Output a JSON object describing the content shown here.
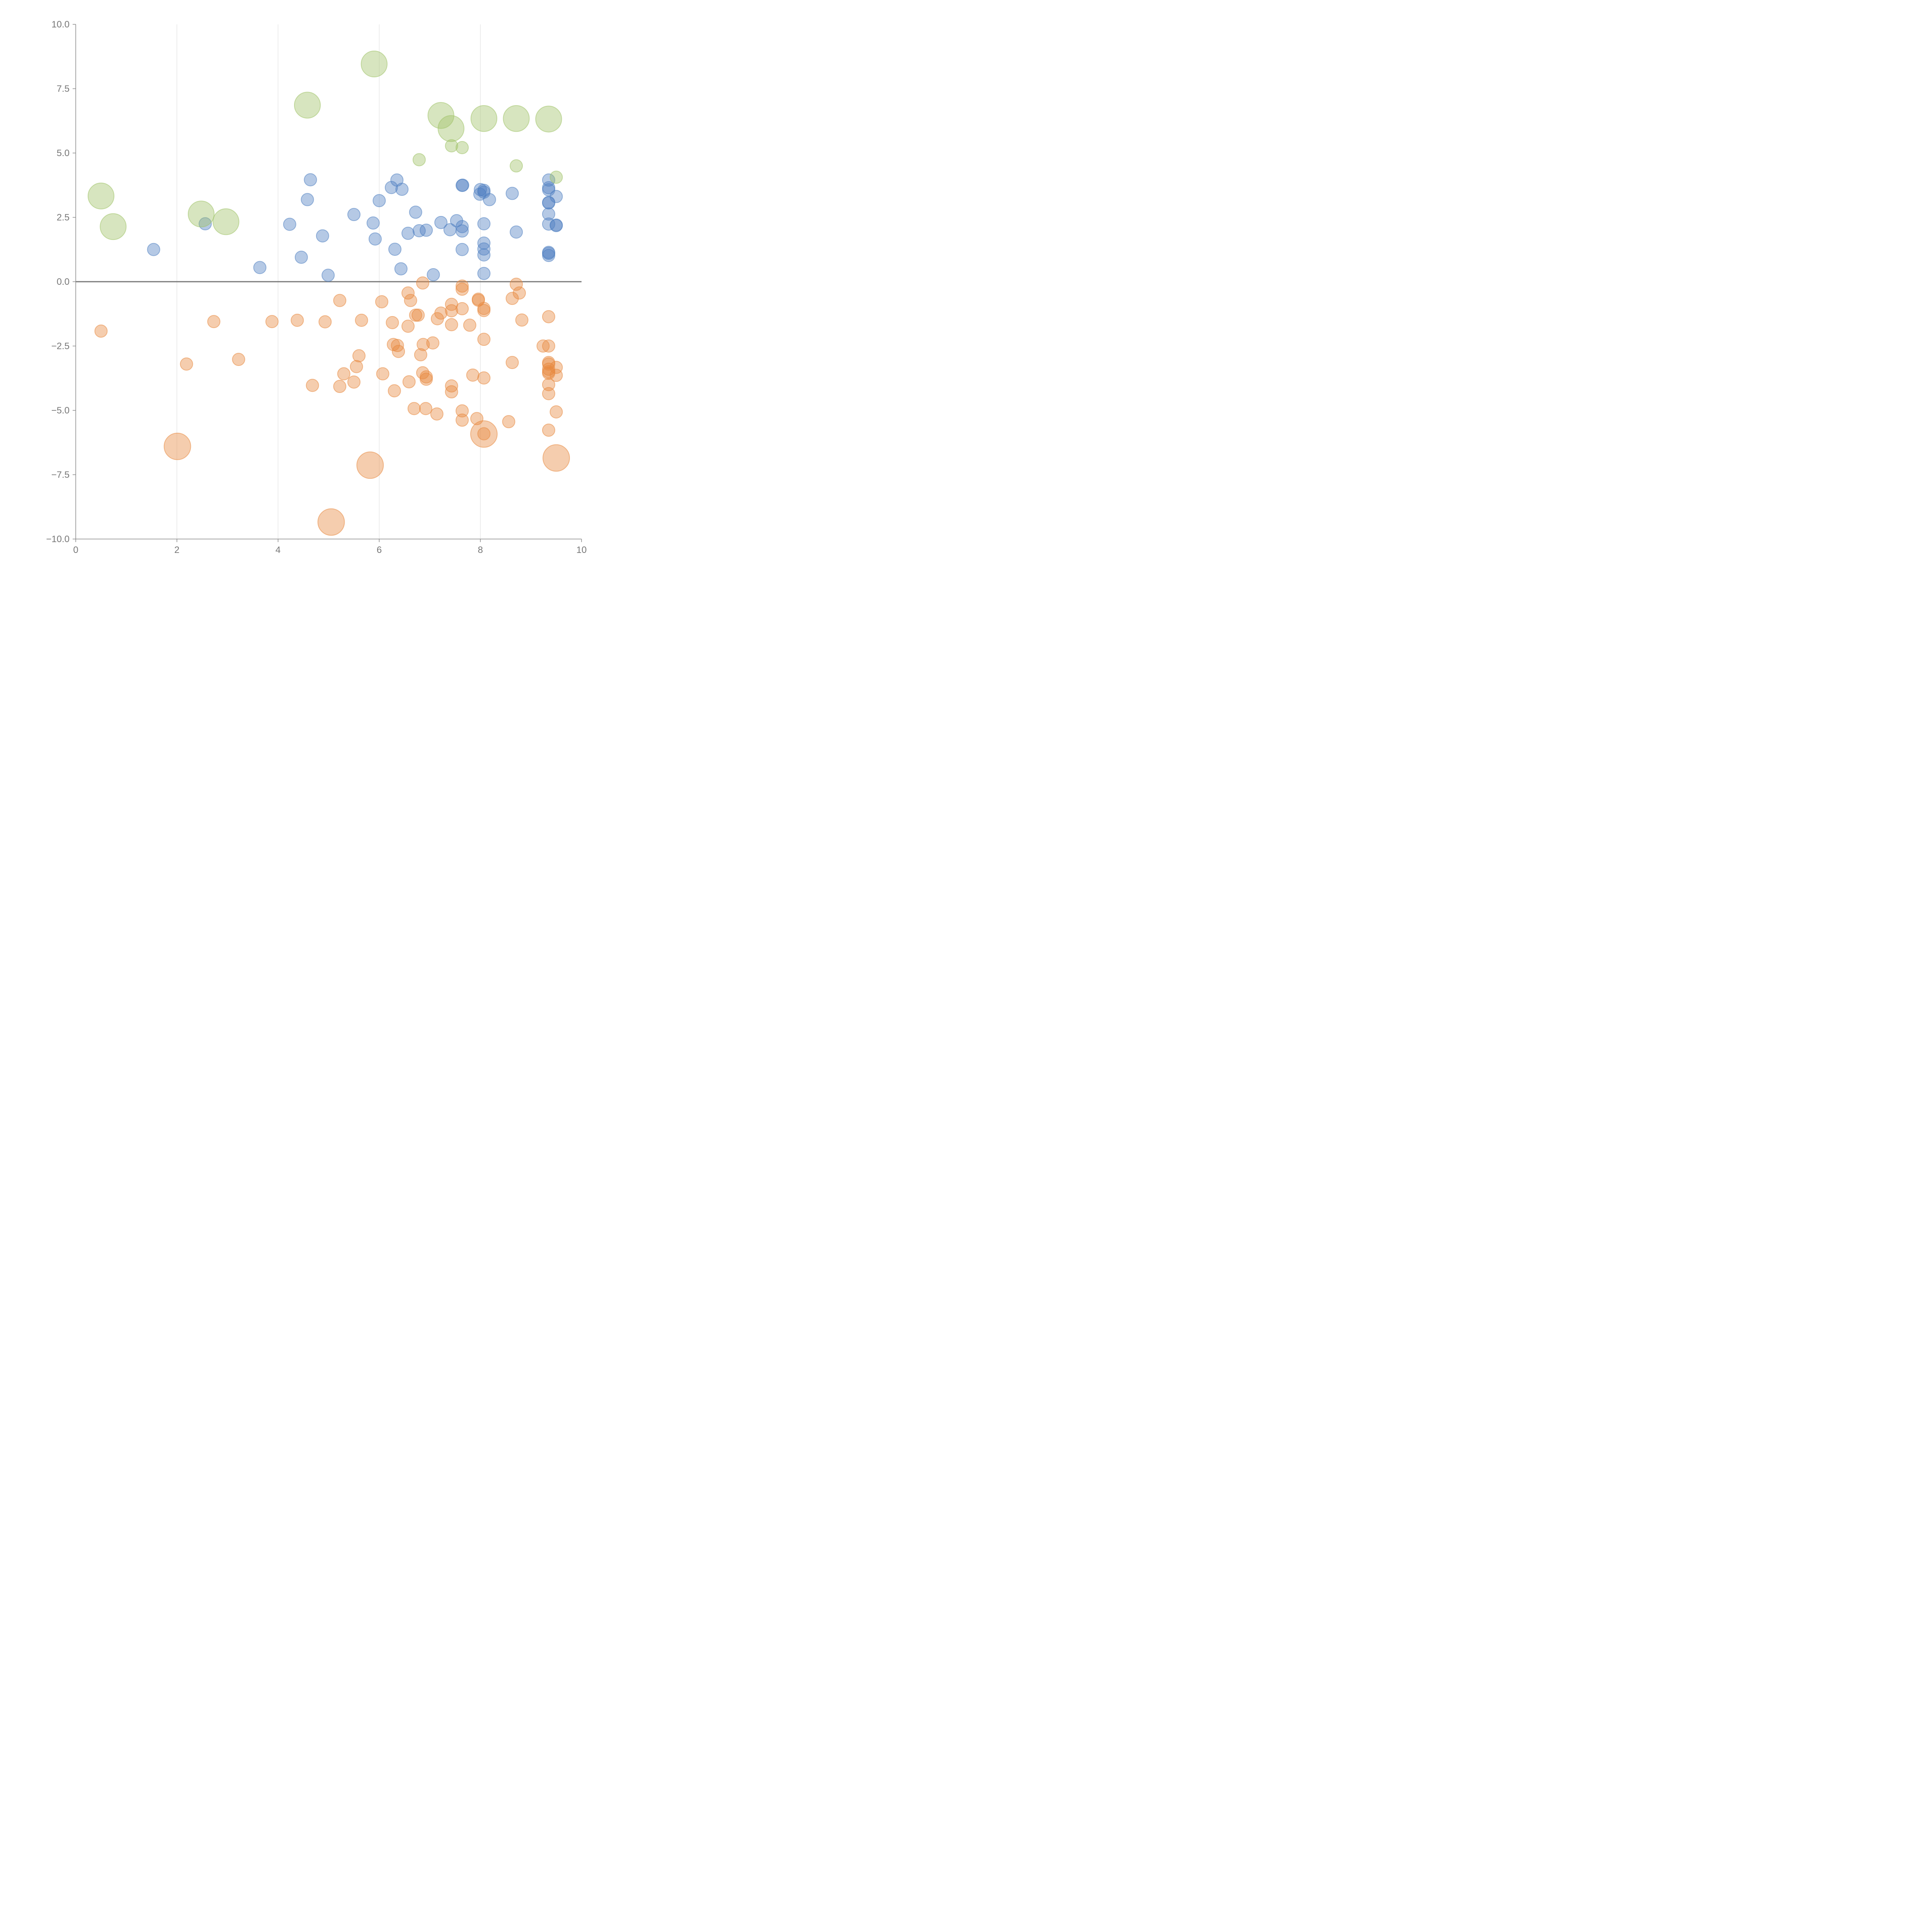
{
  "chart_data": {
    "type": "scatter",
    "title": "",
    "xlabel": "",
    "ylabel": "",
    "xlim": [
      0,
      10
    ],
    "ylim": [
      -10,
      10
    ],
    "grid": {
      "x": true,
      "y": false
    },
    "zero_line": true,
    "x_ticks": [
      0,
      2,
      4,
      6,
      8,
      10
    ],
    "x_tick_labels": [
      "0",
      "2",
      "4",
      "6",
      "8",
      "10"
    ],
    "y_ticks": [
      10,
      7.5,
      5,
      2.5,
      0,
      -2.5,
      -5,
      -7.5,
      -10
    ],
    "y_tick_labels": [
      "10.0",
      "7.5",
      "5.0",
      "2.5",
      "0.0",
      "−2.5",
      "−5.0",
      "−7.5",
      "−10.0"
    ],
    "series": [
      {
        "name": "blue",
        "color": "#4f7fc1",
        "points": [
          {
            "x": 1.54,
            "y": 1.25,
            "r": 1
          },
          {
            "x": 2.56,
            "y": 2.25,
            "r": 1
          },
          {
            "x": 3.64,
            "y": 0.55,
            "r": 1
          },
          {
            "x": 4.23,
            "y": 2.23,
            "r": 1
          },
          {
            "x": 4.46,
            "y": 0.95,
            "r": 1
          },
          {
            "x": 4.58,
            "y": 3.19,
            "r": 1
          },
          {
            "x": 4.64,
            "y": 3.96,
            "r": 1
          },
          {
            "x": 4.88,
            "y": 1.78,
            "r": 1
          },
          {
            "x": 4.99,
            "y": 0.25,
            "r": 1
          },
          {
            "x": 5.5,
            "y": 2.61,
            "r": 1
          },
          {
            "x": 5.88,
            "y": 2.28,
            "r": 1
          },
          {
            "x": 5.92,
            "y": 1.66,
            "r": 1
          },
          {
            "x": 6.0,
            "y": 3.15,
            "r": 1
          },
          {
            "x": 6.24,
            "y": 3.66,
            "r": 1
          },
          {
            "x": 6.31,
            "y": 1.26,
            "r": 1
          },
          {
            "x": 6.35,
            "y": 3.95,
            "r": 1
          },
          {
            "x": 6.43,
            "y": 0.5,
            "r": 1
          },
          {
            "x": 6.45,
            "y": 3.59,
            "r": 1
          },
          {
            "x": 6.57,
            "y": 1.88,
            "r": 1
          },
          {
            "x": 6.72,
            "y": 2.7,
            "r": 1
          },
          {
            "x": 6.79,
            "y": 1.98,
            "r": 1
          },
          {
            "x": 6.93,
            "y": 2.0,
            "r": 1
          },
          {
            "x": 7.07,
            "y": 0.27,
            "r": 1
          },
          {
            "x": 7.22,
            "y": 2.3,
            "r": 1
          },
          {
            "x": 7.4,
            "y": 2.02,
            "r": 1
          },
          {
            "x": 7.53,
            "y": 2.37,
            "r": 1
          },
          {
            "x": 7.64,
            "y": 2.14,
            "r": 1
          },
          {
            "x": 7.64,
            "y": 1.97,
            "r": 1
          },
          {
            "x": 7.64,
            "y": 1.25,
            "r": 1
          },
          {
            "x": 7.64,
            "y": 3.74,
            "r": 1
          },
          {
            "x": 7.65,
            "y": 3.75,
            "r": 1
          },
          {
            "x": 7.99,
            "y": 3.4,
            "r": 1
          },
          {
            "x": 8.0,
            "y": 3.58,
            "r": 1
          },
          {
            "x": 8.07,
            "y": 3.55,
            "r": 1
          },
          {
            "x": 8.07,
            "y": 3.48,
            "r": 1
          },
          {
            "x": 8.07,
            "y": 2.25,
            "r": 1
          },
          {
            "x": 8.07,
            "y": 1.5,
            "r": 1
          },
          {
            "x": 8.07,
            "y": 1.27,
            "r": 1
          },
          {
            "x": 8.07,
            "y": 1.04,
            "r": 1
          },
          {
            "x": 8.07,
            "y": 0.32,
            "r": 1
          },
          {
            "x": 8.18,
            "y": 3.19,
            "r": 1
          },
          {
            "x": 8.63,
            "y": 3.43,
            "r": 1
          },
          {
            "x": 8.71,
            "y": 1.93,
            "r": 1
          },
          {
            "x": 9.35,
            "y": 3.95,
            "r": 1
          },
          {
            "x": 9.35,
            "y": 3.65,
            "r": 1
          },
          {
            "x": 9.35,
            "y": 3.57,
            "r": 1
          },
          {
            "x": 9.35,
            "y": 3.08,
            "r": 1
          },
          {
            "x": 9.35,
            "y": 3.06,
            "r": 1
          },
          {
            "x": 9.35,
            "y": 2.63,
            "r": 1
          },
          {
            "x": 9.35,
            "y": 2.24,
            "r": 1
          },
          {
            "x": 9.35,
            "y": 1.14,
            "r": 1
          },
          {
            "x": 9.35,
            "y": 1.1,
            "r": 1
          },
          {
            "x": 9.35,
            "y": 1.02,
            "r": 1
          },
          {
            "x": 9.5,
            "y": 3.31,
            "r": 1
          },
          {
            "x": 9.5,
            "y": 2.2,
            "r": 1
          },
          {
            "x": 9.5,
            "y": 2.18,
            "r": 1
          }
        ]
      },
      {
        "name": "orange",
        "color": "#e8893e",
        "points": [
          {
            "x": 0.5,
            "y": -1.92,
            "r": 1
          },
          {
            "x": 2.19,
            "y": -3.2,
            "r": 1
          },
          {
            "x": 2.73,
            "y": -1.55,
            "r": 1
          },
          {
            "x": 3.22,
            "y": -3.02,
            "r": 1
          },
          {
            "x": 3.88,
            "y": -1.55,
            "r": 1
          },
          {
            "x": 4.38,
            "y": -1.5,
            "r": 1
          },
          {
            "x": 4.68,
            "y": -4.03,
            "r": 1
          },
          {
            "x": 4.93,
            "y": -1.56,
            "r": 1
          },
          {
            "x": 5.22,
            "y": -0.73,
            "r": 1
          },
          {
            "x": 5.22,
            "y": -4.07,
            "r": 1
          },
          {
            "x": 5.3,
            "y": -3.58,
            "r": 1
          },
          {
            "x": 5.5,
            "y": -3.9,
            "r": 1
          },
          {
            "x": 5.55,
            "y": -3.3,
            "r": 1
          },
          {
            "x": 5.6,
            "y": -2.88,
            "r": 1
          },
          {
            "x": 5.65,
            "y": -1.5,
            "r": 1
          },
          {
            "x": 6.05,
            "y": -0.78,
            "r": 1
          },
          {
            "x": 6.07,
            "y": -3.58,
            "r": 1
          },
          {
            "x": 6.26,
            "y": -1.59,
            "r": 1
          },
          {
            "x": 6.28,
            "y": -2.44,
            "r": 1
          },
          {
            "x": 6.3,
            "y": -4.24,
            "r": 1
          },
          {
            "x": 6.36,
            "y": -2.48,
            "r": 1
          },
          {
            "x": 6.38,
            "y": -2.71,
            "r": 1
          },
          {
            "x": 6.57,
            "y": -0.44,
            "r": 1
          },
          {
            "x": 6.57,
            "y": -1.73,
            "r": 1
          },
          {
            "x": 6.59,
            "y": -3.89,
            "r": 1
          },
          {
            "x": 6.62,
            "y": -0.73,
            "r": 1
          },
          {
            "x": 6.69,
            "y": -4.93,
            "r": 1
          },
          {
            "x": 6.72,
            "y": -1.3,
            "r": 1
          },
          {
            "x": 6.77,
            "y": -1.3,
            "r": 1
          },
          {
            "x": 6.82,
            "y": -2.84,
            "r": 1
          },
          {
            "x": 6.86,
            "y": -3.54,
            "r": 1
          },
          {
            "x": 6.86,
            "y": -0.05,
            "r": 1
          },
          {
            "x": 6.87,
            "y": -2.44,
            "r": 1
          },
          {
            "x": 6.92,
            "y": -4.93,
            "r": 1
          },
          {
            "x": 6.93,
            "y": -3.7,
            "r": 1
          },
          {
            "x": 6.93,
            "y": -3.79,
            "r": 1
          },
          {
            "x": 7.06,
            "y": -2.38,
            "r": 1
          },
          {
            "x": 7.14,
            "y": -5.14,
            "r": 1
          },
          {
            "x": 7.15,
            "y": -1.44,
            "r": 1
          },
          {
            "x": 7.22,
            "y": -1.22,
            "r": 1
          },
          {
            "x": 7.43,
            "y": -0.88,
            "r": 1
          },
          {
            "x": 7.43,
            "y": -1.13,
            "r": 1
          },
          {
            "x": 7.43,
            "y": -1.67,
            "r": 1
          },
          {
            "x": 7.43,
            "y": -4.05,
            "r": 1
          },
          {
            "x": 7.43,
            "y": -4.28,
            "r": 1
          },
          {
            "x": 7.64,
            "y": -0.17,
            "r": 1
          },
          {
            "x": 7.64,
            "y": -0.29,
            "r": 1
          },
          {
            "x": 7.64,
            "y": -1.05,
            "r": 1
          },
          {
            "x": 7.64,
            "y": -5.02,
            "r": 1
          },
          {
            "x": 7.64,
            "y": -5.38,
            "r": 1
          },
          {
            "x": 7.79,
            "y": -1.69,
            "r": 1
          },
          {
            "x": 7.85,
            "y": -3.63,
            "r": 1
          },
          {
            "x": 7.93,
            "y": -5.32,
            "r": 1
          },
          {
            "x": 7.96,
            "y": -0.68,
            "r": 1
          },
          {
            "x": 7.96,
            "y": -0.72,
            "r": 1
          },
          {
            "x": 8.07,
            "y": -1.04,
            "r": 1
          },
          {
            "x": 8.07,
            "y": -1.12,
            "r": 1
          },
          {
            "x": 8.07,
            "y": -2.24,
            "r": 1
          },
          {
            "x": 8.07,
            "y": -3.74,
            "r": 1
          },
          {
            "x": 8.07,
            "y": -5.91,
            "r": 1
          },
          {
            "x": 8.56,
            "y": -5.44,
            "r": 1
          },
          {
            "x": 8.63,
            "y": -0.65,
            "r": 1
          },
          {
            "x": 8.63,
            "y": -3.14,
            "r": 1
          },
          {
            "x": 8.71,
            "y": -0.1,
            "r": 1
          },
          {
            "x": 8.77,
            "y": -0.44,
            "r": 1
          },
          {
            "x": 8.82,
            "y": -1.49,
            "r": 1
          },
          {
            "x": 9.24,
            "y": -2.5,
            "r": 1
          },
          {
            "x": 9.35,
            "y": -1.36,
            "r": 1
          },
          {
            "x": 9.35,
            "y": -2.5,
            "r": 1
          },
          {
            "x": 9.35,
            "y": -3.14,
            "r": 1
          },
          {
            "x": 9.35,
            "y": -3.2,
            "r": 1
          },
          {
            "x": 9.35,
            "y": -3.4,
            "r": 1
          },
          {
            "x": 9.35,
            "y": -3.5,
            "r": 1
          },
          {
            "x": 9.35,
            "y": -3.56,
            "r": 1
          },
          {
            "x": 9.35,
            "y": -4.0,
            "r": 1
          },
          {
            "x": 9.35,
            "y": -4.35,
            "r": 1
          },
          {
            "x": 9.35,
            "y": -5.77,
            "r": 1
          },
          {
            "x": 9.5,
            "y": -3.33,
            "r": 1
          },
          {
            "x": 9.5,
            "y": -3.64,
            "r": 1
          },
          {
            "x": 9.5,
            "y": -5.06,
            "r": 1
          },
          {
            "x": 2.01,
            "y": -6.4,
            "r": 2.15
          },
          {
            "x": 5.05,
            "y": -9.34,
            "r": 2.15
          },
          {
            "x": 5.82,
            "y": -7.13,
            "r": 2.15
          },
          {
            "x": 8.07,
            "y": -5.92,
            "r": 2.15
          },
          {
            "x": 9.5,
            "y": -6.85,
            "r": 2.15
          }
        ]
      },
      {
        "name": "green",
        "color": "#9fc266",
        "points": [
          {
            "x": 0.5,
            "y": 3.33,
            "r": 2.1
          },
          {
            "x": 0.74,
            "y": 2.14,
            "r": 2.1
          },
          {
            "x": 2.48,
            "y": 2.63,
            "r": 2.1
          },
          {
            "x": 2.97,
            "y": 2.33,
            "r": 2.1
          },
          {
            "x": 4.58,
            "y": 6.86,
            "r": 2.1
          },
          {
            "x": 5.9,
            "y": 8.46,
            "r": 2.1
          },
          {
            "x": 7.22,
            "y": 6.46,
            "r": 2.1
          },
          {
            "x": 7.42,
            "y": 5.95,
            "r": 2.1
          },
          {
            "x": 8.07,
            "y": 6.34,
            "r": 2.1
          },
          {
            "x": 8.71,
            "y": 6.34,
            "r": 2.1
          },
          {
            "x": 9.35,
            "y": 6.32,
            "r": 2.1
          },
          {
            "x": 6.79,
            "y": 4.74,
            "r": 1
          },
          {
            "x": 7.43,
            "y": 5.28,
            "r": 1
          },
          {
            "x": 7.64,
            "y": 5.21,
            "r": 1
          },
          {
            "x": 8.71,
            "y": 4.5,
            "r": 1
          },
          {
            "x": 9.5,
            "y": 4.06,
            "r": 1
          }
        ]
      }
    ]
  }
}
